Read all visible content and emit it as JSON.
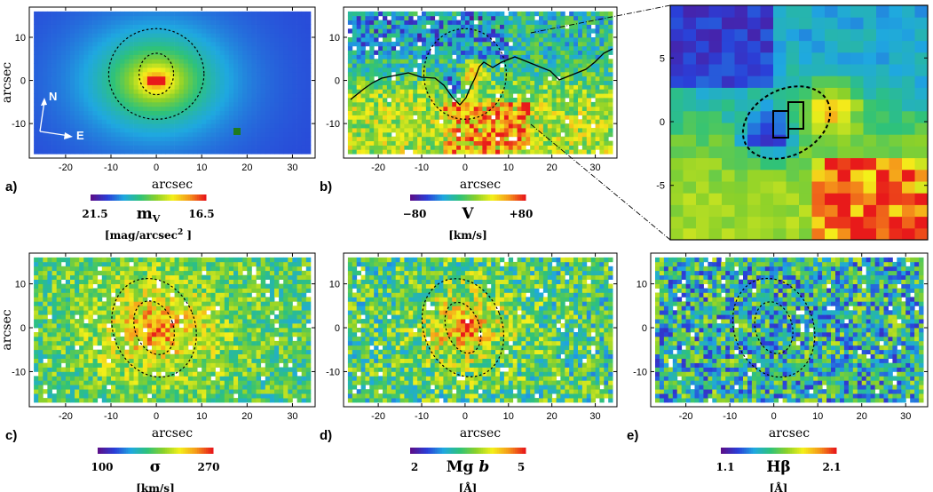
{
  "panels": [
    {
      "id": "a",
      "label": "a)",
      "xlabel": "arcsec",
      "ylabel": "arcsec",
      "xticks": [
        "-20",
        "-10",
        "0",
        "10",
        "20",
        "30"
      ],
      "yticks": [
        "10",
        "0",
        "-10"
      ],
      "colorbar": {
        "min": "21.5",
        "max": "16.5",
        "quantity": "m",
        "quantity_sub": "V",
        "unit": "[mag/arcsec",
        "unit_sup": "2",
        "unit_tail": " ]"
      },
      "compass": {
        "north": "N",
        "east": "E"
      }
    },
    {
      "id": "b",
      "label": "b)",
      "xlabel": "arcsec",
      "ylabel": "",
      "xticks": [
        "-20",
        "-10",
        "0",
        "10",
        "20",
        "30"
      ],
      "yticks": [
        "10",
        "0",
        "-10"
      ],
      "colorbar": {
        "min": "−80",
        "max": "+80",
        "quantity": "V",
        "unit": "[km/s]"
      }
    },
    {
      "id": "zoom",
      "label": "",
      "xlabel": "",
      "ylabel": "",
      "xticks": [],
      "yticks": [
        "5",
        "0",
        "-5"
      ]
    },
    {
      "id": "c",
      "label": "c)",
      "xlabel": "arcsec",
      "ylabel": "arcsec",
      "xticks": [
        "-20",
        "-10",
        "0",
        "10",
        "20",
        "30"
      ],
      "yticks": [
        "10",
        "0",
        "-10"
      ],
      "colorbar": {
        "min": "100",
        "max": "270",
        "quantity": "σ",
        "unit": "[km/s]"
      }
    },
    {
      "id": "d",
      "label": "d)",
      "xlabel": "arcsec",
      "ylabel": "",
      "xticks": [
        "-20",
        "-10",
        "0",
        "10",
        "20",
        "30"
      ],
      "yticks": [
        "10",
        "0",
        "-10"
      ],
      "colorbar": {
        "min": "2",
        "max": "5",
        "quantity": "Mg ",
        "quantity_italic": "b",
        "unit": "[Å]"
      }
    },
    {
      "id": "e",
      "label": "e)",
      "xlabel": "arcsec",
      "ylabel": "",
      "xticks": [
        "-20",
        "-10",
        "0",
        "10",
        "20",
        "30"
      ],
      "yticks": [
        "10",
        "0",
        "-10"
      ],
      "colorbar": {
        "min": "1.1",
        "max": "2.1",
        "quantity": "Hβ",
        "unit": "[Å]"
      }
    }
  ],
  "colormap": [
    "#5a0f8a",
    "#2a3fd8",
    "#1fa8e0",
    "#2ec27a",
    "#8bd12a",
    "#f4f01a",
    "#f59a1a",
    "#e81a1a"
  ],
  "field_of_view": {
    "x_range": [
      -28,
      35
    ],
    "y_range": [
      -18,
      17
    ]
  }
}
